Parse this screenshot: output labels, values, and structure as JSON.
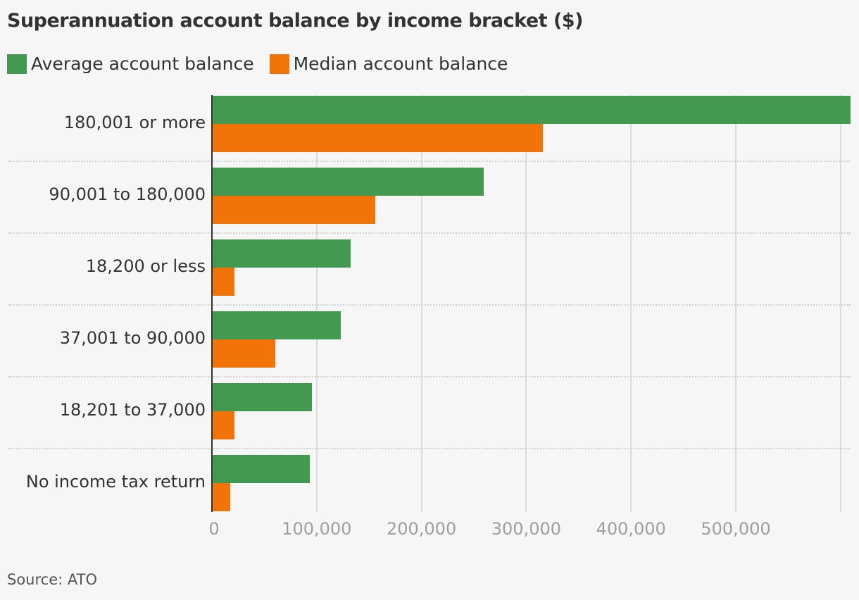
{
  "title": "Superannuation account balance by income bracket ($)",
  "legend": [
    {
      "label": "Average account balance",
      "color": "#43994f"
    },
    {
      "label": "Median account balance",
      "color": "#f27307"
    }
  ],
  "source": "Source: ATO",
  "axis": {
    "ticks": [
      "0",
      "100,000",
      "200,000",
      "300,000",
      "400,000",
      "500,000"
    ]
  },
  "chart_data": {
    "type": "bar",
    "orientation": "horizontal",
    "title": "Superannuation account balance by income bracket ($)",
    "xlabel": "",
    "ylabel": "",
    "categories": [
      "180,001 or more",
      "90,001 to 180,000",
      "18,200 or less",
      "37,001 to 90,000",
      "18,201 to 37,000",
      "No income tax return"
    ],
    "series": [
      {
        "name": "Average account balance",
        "color": "#43994f",
        "values": [
          610000,
          259000,
          132000,
          122000,
          95000,
          93000
        ]
      },
      {
        "name": "Median account balance",
        "color": "#f27307",
        "values": [
          315000,
          155000,
          21000,
          60000,
          21000,
          17000
        ]
      }
    ],
    "xlim": [
      0,
      610000
    ],
    "x_ticks": [
      0,
      100000,
      200000,
      300000,
      400000,
      500000
    ],
    "grid": "vertical",
    "legend_position": "top-left",
    "source": "Source: ATO"
  }
}
